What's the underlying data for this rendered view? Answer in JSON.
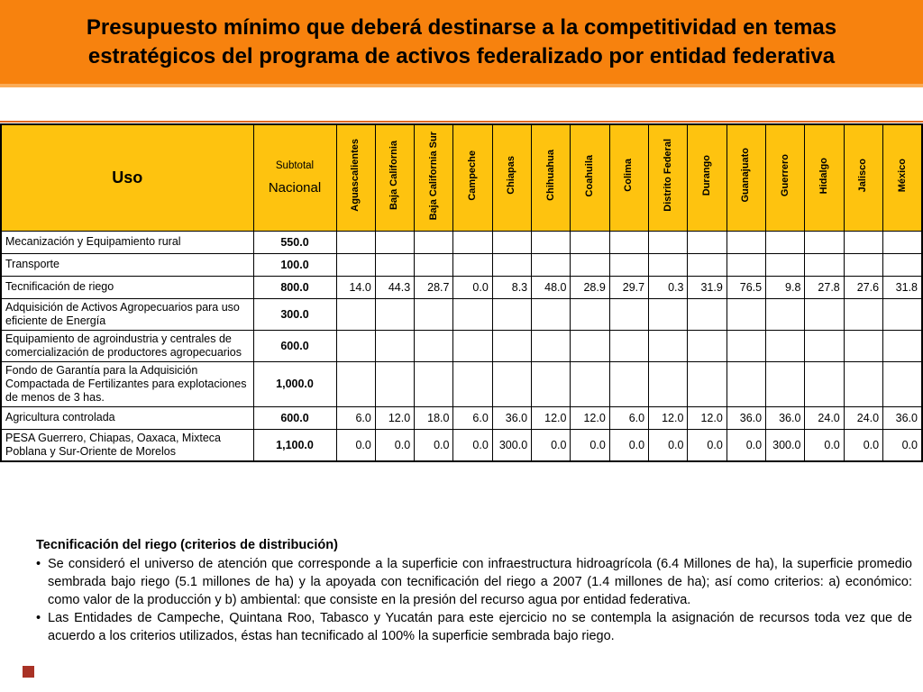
{
  "title": {
    "line1": "Presupuesto mínimo que deberá destinarse a la competitividad en temas",
    "line2": "estratégicos del programa de activos federalizado por entidad federativa"
  },
  "table": {
    "uso_header": "Uso",
    "subtotal_header_top": "Subtotal",
    "subtotal_header_bottom": "Nacional",
    "states": [
      "Aguascalientes",
      "Baja California",
      "Baja California Sur",
      "Campeche",
      "Chiapas",
      "Chihuahua",
      "Coahuila",
      "Colima",
      "Distrito Federal",
      "Durango",
      "Guanajuato",
      "Guerrero",
      "Hidalgo",
      "Jalisco",
      "México"
    ],
    "rows": [
      {
        "label": "Mecanización y Equipamiento rural",
        "subtotal": "550.0",
        "values": [
          "",
          "",
          "",
          "",
          "",
          "",
          "",
          "",
          "",
          "",
          "",
          "",
          "",
          "",
          ""
        ]
      },
      {
        "label": "Transporte",
        "subtotal": "100.0",
        "values": [
          "",
          "",
          "",
          "",
          "",
          "",
          "",
          "",
          "",
          "",
          "",
          "",
          "",
          "",
          ""
        ]
      },
      {
        "label": "Tecnificación de riego",
        "subtotal": "800.0",
        "values": [
          "14.0",
          "44.3",
          "28.7",
          "0.0",
          "8.3",
          "48.0",
          "28.9",
          "29.7",
          "0.3",
          "31.9",
          "76.5",
          "9.8",
          "27.8",
          "27.6",
          "31.8"
        ]
      },
      {
        "label": "Adquisición de Activos Agropecuarios para uso eficiente de Energía",
        "subtotal": "300.0",
        "values": [
          "",
          "",
          "",
          "",
          "",
          "",
          "",
          "",
          "",
          "",
          "",
          "",
          "",
          "",
          ""
        ]
      },
      {
        "label": "Equipamiento de agroindustria y centrales de comercialización de productores agropecuarios",
        "subtotal": "600.0",
        "values": [
          "",
          "",
          "",
          "",
          "",
          "",
          "",
          "",
          "",
          "",
          "",
          "",
          "",
          "",
          ""
        ]
      },
      {
        "label": "Fondo de Garantía para la Adquisición Compactada de Fertilizantes para explotaciones de menos de 3 has.",
        "subtotal": "1,000.0",
        "values": [
          "",
          "",
          "",
          "",
          "",
          "",
          "",
          "",
          "",
          "",
          "",
          "",
          "",
          "",
          ""
        ]
      },
      {
        "label": "Agricultura controlada",
        "subtotal": "600.0",
        "values": [
          "6.0",
          "12.0",
          "18.0",
          "6.0",
          "36.0",
          "12.0",
          "12.0",
          "6.0",
          "12.0",
          "12.0",
          "36.0",
          "36.0",
          "24.0",
          "24.0",
          "36.0"
        ]
      },
      {
        "label": "PESA Guerrero, Chiapas, Oaxaca, Mixteca Poblana y Sur-Oriente de Morelos",
        "subtotal": "1,100.0",
        "values": [
          "0.0",
          "0.0",
          "0.0",
          "0.0",
          "300.0",
          "0.0",
          "0.0",
          "0.0",
          "0.0",
          "0.0",
          "0.0",
          "300.0",
          "0.0",
          "0.0",
          "0.0"
        ]
      }
    ]
  },
  "notes": {
    "heading": "Tecnificación del riego (criterios de distribución)",
    "bullets": [
      "Se consideró el universo de atención que corresponde a la superficie con infraestructura hidroagrícola (6.4 Millones de ha), la superficie promedio sembrada bajo riego (5.1 millones de ha) y la apoyada con tecnificación del riego a 2007 (1.4 millones de ha); así como criterios: a) económico: como valor de la producción y b) ambiental: que consiste en la presión del recurso agua por entidad federativa.",
      "Las Entidades de Campeche, Quintana Roo, Tabasco y Yucatán para este ejercicio no se contempla la asignación de recursos toda vez que de acuerdo a los criterios utilizados, éstas han tecnificado al 100% la superficie sembrada bajo riego."
    ]
  },
  "colors": {
    "band_orange": "#F7820E",
    "band_orange_light": "#FBAC57",
    "table_header_yellow": "#FEC30F",
    "rule_orange": "#E2691F",
    "marker_red": "#A93226",
    "border_black": "#000000",
    "text_black": "#000000"
  }
}
